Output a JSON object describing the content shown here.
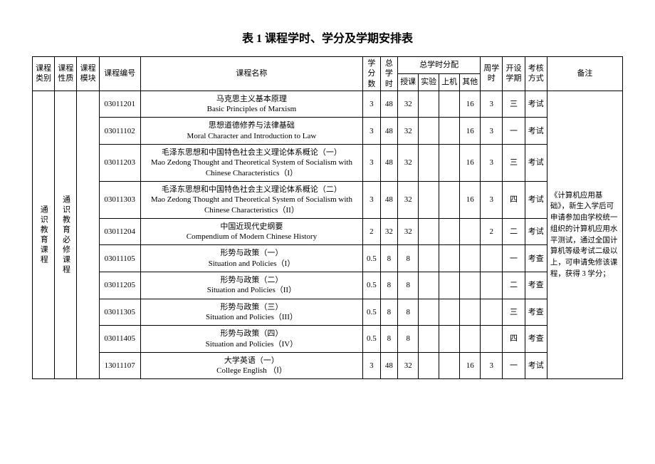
{
  "title": "表 1  课程学时、学分及学期安排表",
  "headers": {
    "category": "课程类别",
    "nature": "课程性质",
    "module": "课程模块",
    "code": "课程编号",
    "name": "课程名称",
    "credits": "学分数",
    "total_hours": "总学时",
    "hours_alloc": "总学时分配",
    "teach": "授课",
    "experiment": "实验",
    "computer": "上机",
    "other": "其他",
    "weekly": "周学时",
    "semester": "开设学期",
    "assessment": "考核方式",
    "remark": "备注"
  },
  "category_label": "通识教育课程",
  "nature_label": "通识教育必修课程",
  "rows": [
    {
      "code": "03011201",
      "name_cn": "马克思主义基本原理",
      "name_en": "Basic Principles of Marxism",
      "credits": "3",
      "total": "48",
      "teach": "32",
      "experiment": "",
      "computer": "",
      "other": "16",
      "weekly": "3",
      "semester": "三",
      "assessment": "考试"
    },
    {
      "code": "03011102",
      "name_cn": "思想道德修养与法律基础",
      "name_en": "Moral Character and Introduction to Law",
      "credits": "3",
      "total": "48",
      "teach": "32",
      "experiment": "",
      "computer": "",
      "other": "16",
      "weekly": "3",
      "semester": "一",
      "assessment": "考试"
    },
    {
      "code": "03011203",
      "name_cn": "毛泽东思想和中国特色社会主义理论体系概论（一）",
      "name_en": "Mao Zedong Thought and Theoretical System of Socialism with Chinese Characteristics（I）",
      "credits": "3",
      "total": "48",
      "teach": "32",
      "experiment": "",
      "computer": "",
      "other": "16",
      "weekly": "3",
      "semester": "三",
      "assessment": "考试"
    },
    {
      "code": "03011303",
      "name_cn": "毛泽东思想和中国特色社会主义理论体系概论（二）",
      "name_en": "Mao Zedong Thought and Theoretical System of Socialism with Chinese Characteristics（II）",
      "credits": "3",
      "total": "48",
      "teach": "32",
      "experiment": "",
      "computer": "",
      "other": "16",
      "weekly": "3",
      "semester": "四",
      "assessment": "考试"
    },
    {
      "code": "03011204",
      "name_cn": "中国近现代史纲要",
      "name_en": "Compendium of Modern Chinese History",
      "credits": "2",
      "total": "32",
      "teach": "32",
      "experiment": "",
      "computer": "",
      "other": "",
      "weekly": "2",
      "semester": "二",
      "assessment": "考试"
    },
    {
      "code": "03011105",
      "name_cn": "形势与政策（一）",
      "name_en": "Situation and Policies（I）",
      "credits": "0.5",
      "total": "8",
      "teach": "8",
      "experiment": "",
      "computer": "",
      "other": "",
      "weekly": "",
      "semester": "一",
      "assessment": "考查"
    },
    {
      "code": "03011205",
      "name_cn": "形势与政策（二）",
      "name_en": "Situation and Policies（II）",
      "credits": "0.5",
      "total": "8",
      "teach": "8",
      "experiment": "",
      "computer": "",
      "other": "",
      "weekly": "",
      "semester": "二",
      "assessment": "考查"
    },
    {
      "code": "03011305",
      "name_cn": "形势与政策（三）",
      "name_en": "Situation and Policies（III）",
      "credits": "0.5",
      "total": "8",
      "teach": "8",
      "experiment": "",
      "computer": "",
      "other": "",
      "weekly": "",
      "semester": "三",
      "assessment": "考查"
    },
    {
      "code": "03011405",
      "name_cn": "形势与政策（四）",
      "name_en": "Situation and Policies（IV）",
      "credits": "0.5",
      "total": "8",
      "teach": "8",
      "experiment": "",
      "computer": "",
      "other": "",
      "weekly": "",
      "semester": "四",
      "assessment": "考查"
    },
    {
      "code": "13011107",
      "name_cn": "大学英语（一）",
      "name_en": "College English （Ⅰ）",
      "credits": "3",
      "total": "48",
      "teach": "32",
      "experiment": "",
      "computer": "",
      "other": "16",
      "weekly": "3",
      "semester": "一",
      "assessment": "考试"
    }
  ],
  "remark_text": "《计算机应用基础》，新生入学后可申请参加由学校统一组织的计算机应用水平测试，通过全国计算机等级考试二级以上，可申请免修该课程，获得 3 学分；"
}
